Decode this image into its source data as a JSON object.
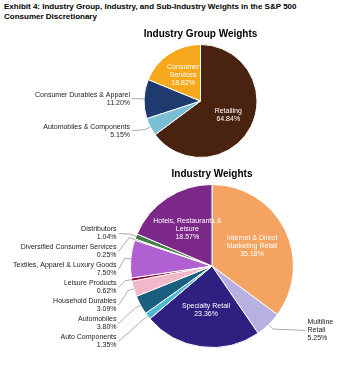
{
  "title": "Exhibit 4: Industry Group, Industry, and Sub-Industry Weights in the S&P 500",
  "subtitle": "Consumer Discretionary",
  "chart_data": [
    {
      "type": "pie",
      "title": "Industry Group Weights",
      "categories": [
        "Retailing",
        "Automobiles & Components",
        "Consumer Durables & Apparel",
        "Consumer Services"
      ],
      "values": [
        64.84,
        5.15,
        11.2,
        18.82
      ],
      "value_labels": [
        "64.84%",
        "5.15%",
        "11.20%",
        "18.82%"
      ],
      "colors": [
        "#4a2210",
        "#7bbfd4",
        "#1e3a6e",
        "#f5a81c"
      ],
      "data_labels": true
    },
    {
      "type": "pie",
      "title": "Industry Weights",
      "categories": [
        "Internet & Direct Marketing Retail",
        "Multiline Retail",
        "Specialty Retail",
        "Auto Components",
        "Automobiles",
        "Household Durables",
        "Leisure Products",
        "Textiles, Apparel & Luxury Goods",
        "Diversified Consumer Services",
        "Distributors",
        "Hotels, Restaurants & Leisure"
      ],
      "values": [
        35.18,
        5.25,
        23.36,
        1.35,
        3.8,
        3.09,
        0.62,
        7.5,
        0.25,
        1.04,
        18.57
      ],
      "value_labels": [
        "35.18%",
        "5.25%",
        "23.36%",
        "1.35%",
        "3.80%",
        "3.09%",
        "0.62%",
        "7.50%",
        "0.25%",
        "1.04%",
        "18.57%"
      ],
      "colors": [
        "#f4a460",
        "#b8b0e0",
        "#2d2080",
        "#4eb8d0",
        "#1a5f80",
        "#f0b8c8",
        "#8b0030",
        "#b060d0",
        "#007070",
        "#408040",
        "#7b2888"
      ],
      "data_labels": true
    }
  ]
}
